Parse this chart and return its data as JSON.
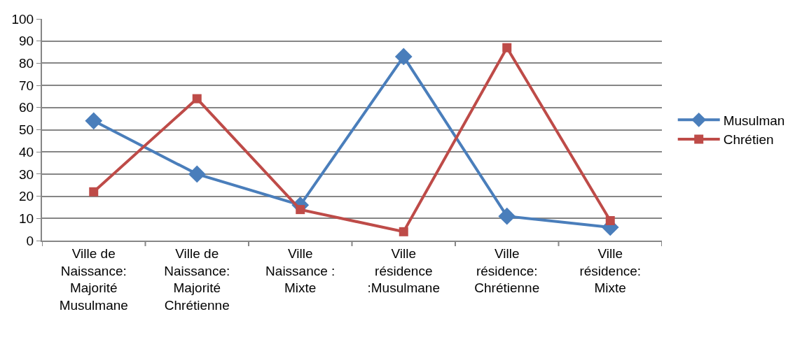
{
  "chart_data": {
    "type": "line",
    "categories": [
      "Ville de\nNaissance:\nMajorité\nMusulmane",
      "Ville de\nNaissance:\nMajorité\nChrétienne",
      "Ville\nNaissance :\nMixte",
      "Ville\nrésidence\n:Musulmane",
      "Ville\nrésidence:\nChrétienne",
      "Ville\nrésidence:\nMixte"
    ],
    "series": [
      {
        "name": "Musulman",
        "color": "#4a7ebb",
        "marker": "diamond",
        "values": [
          54,
          30,
          16,
          83,
          11,
          6
        ]
      },
      {
        "name": "Chrétien",
        "color": "#be4b48",
        "marker": "square",
        "values": [
          22,
          64,
          14,
          4,
          87,
          9
        ]
      }
    ],
    "ylim": [
      0,
      100
    ],
    "yticks": [
      0,
      10,
      20,
      30,
      40,
      50,
      60,
      70,
      80,
      90,
      100
    ],
    "grid": "y",
    "legend": "right"
  }
}
